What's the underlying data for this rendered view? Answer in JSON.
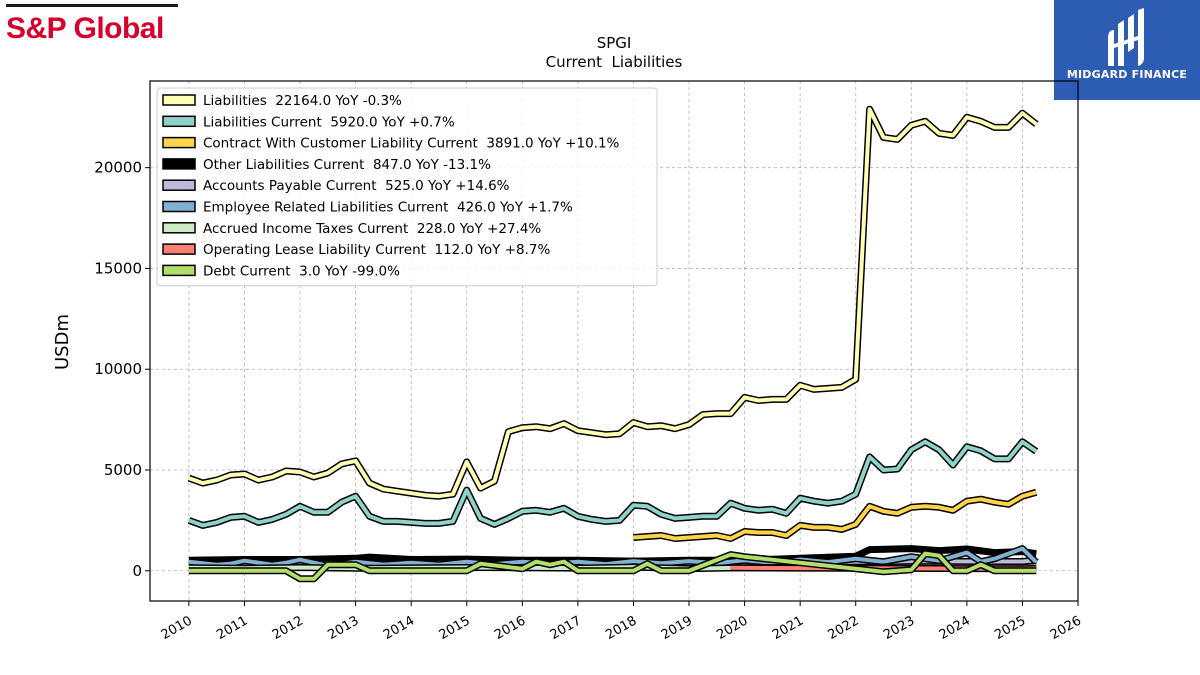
{
  "brand": {
    "left_logo_text": "S&P Global",
    "right_logo_text": "MIDGARD FINANCE",
    "right_logo_bg": "#2c5cb4",
    "left_logo_color": "#d6002a"
  },
  "chart_data": {
    "type": "line",
    "title": "SPGI",
    "subtitle": "Current  Liabilities",
    "ylabel": "USDm",
    "xlabel": "",
    "xlim": [
      2009.3,
      2026.0
    ],
    "ylim": [
      -1500,
      24300
    ],
    "yticks": [
      0,
      5000,
      10000,
      15000,
      20000
    ],
    "xticks": [
      2010,
      2011,
      2012,
      2013,
      2014,
      2015,
      2016,
      2017,
      2018,
      2019,
      2020,
      2021,
      2022,
      2023,
      2024,
      2025,
      2026
    ],
    "grid": true,
    "legend_position": "top-left",
    "series": [
      {
        "name": "Liabilities  22164.0 YoY -0.3%",
        "color": "#ffffb3",
        "x": [
          2010.0,
          2010.25,
          2010.5,
          2010.75,
          2011.0,
          2011.25,
          2011.5,
          2011.75,
          2012.0,
          2012.25,
          2012.5,
          2012.75,
          2013.0,
          2013.25,
          2013.5,
          2013.75,
          2014.0,
          2014.25,
          2014.5,
          2014.75,
          2015.0,
          2015.25,
          2015.5,
          2015.75,
          2016.0,
          2016.25,
          2016.5,
          2016.75,
          2017.0,
          2017.25,
          2017.5,
          2017.75,
          2018.0,
          2018.25,
          2018.5,
          2018.75,
          2019.0,
          2019.25,
          2019.5,
          2019.75,
          2020.0,
          2020.25,
          2020.5,
          2020.75,
          2021.0,
          2021.25,
          2021.5,
          2021.75,
          2022.0,
          2022.25,
          2022.5,
          2022.75,
          2023.0,
          2023.25,
          2023.5,
          2023.75,
          2024.0,
          2024.25,
          2024.5,
          2024.75,
          2025.0,
          2025.25
        ],
        "values": [
          4600,
          4350,
          4500,
          4750,
          4800,
          4500,
          4650,
          4950,
          4900,
          4650,
          4850,
          5300,
          5450,
          4350,
          4050,
          3950,
          3850,
          3750,
          3700,
          3800,
          5400,
          4100,
          4450,
          6900,
          7100,
          7150,
          7050,
          7300,
          6950,
          6850,
          6750,
          6800,
          7350,
          7150,
          7200,
          7050,
          7250,
          7750,
          7800,
          7800,
          8600,
          8450,
          8500,
          8500,
          9200,
          9000,
          9050,
          9100,
          9500,
          22900,
          21500,
          21400,
          22100,
          22300,
          21700,
          21600,
          22500,
          22300,
          22000,
          22000,
          22700,
          22164
        ]
      },
      {
        "name": "Liabilities Current  5920.0 YoY +0.7%",
        "color": "#8dd3c7",
        "x": [
          2010.0,
          2010.25,
          2010.5,
          2010.75,
          2011.0,
          2011.25,
          2011.5,
          2011.75,
          2012.0,
          2012.25,
          2012.5,
          2012.75,
          2013.0,
          2013.25,
          2013.5,
          2013.75,
          2014.0,
          2014.25,
          2014.5,
          2014.75,
          2015.0,
          2015.25,
          2015.5,
          2015.75,
          2016.0,
          2016.25,
          2016.5,
          2016.75,
          2017.0,
          2017.25,
          2017.5,
          2017.75,
          2018.0,
          2018.25,
          2018.5,
          2018.75,
          2019.0,
          2019.25,
          2019.5,
          2019.75,
          2020.0,
          2020.25,
          2020.5,
          2020.75,
          2021.0,
          2021.25,
          2021.5,
          2021.75,
          2022.0,
          2022.25,
          2022.5,
          2022.75,
          2023.0,
          2023.25,
          2023.5,
          2023.75,
          2024.0,
          2024.25,
          2024.5,
          2024.75,
          2025.0,
          2025.25
        ],
        "values": [
          2500,
          2250,
          2400,
          2650,
          2700,
          2400,
          2550,
          2800,
          3200,
          2900,
          2900,
          3400,
          3700,
          2700,
          2450,
          2450,
          2400,
          2350,
          2350,
          2450,
          4000,
          2600,
          2300,
          2600,
          2950,
          3000,
          2900,
          3100,
          2700,
          2550,
          2450,
          2500,
          3250,
          3200,
          2800,
          2600,
          2650,
          2700,
          2700,
          3350,
          3100,
          3000,
          3050,
          2850,
          3600,
          3450,
          3350,
          3450,
          3800,
          5650,
          5000,
          5050,
          6000,
          6400,
          6000,
          5250,
          6150,
          5950,
          5550,
          5550,
          6400,
          5920
        ]
      },
      {
        "name": "Contract With Customer Liability Current  3891.0 YoY +10.1%",
        "color": "#fdd44a",
        "x": [
          2018.0,
          2018.25,
          2018.5,
          2018.75,
          2019.0,
          2019.25,
          2019.5,
          2019.75,
          2020.0,
          2020.25,
          2020.5,
          2020.75,
          2021.0,
          2021.25,
          2021.5,
          2021.75,
          2022.0,
          2022.25,
          2022.5,
          2022.75,
          2023.0,
          2023.25,
          2023.5,
          2023.75,
          2024.0,
          2024.25,
          2024.5,
          2024.75,
          2025.0,
          2025.25
        ],
        "values": [
          1650,
          1700,
          1750,
          1600,
          1650,
          1700,
          1750,
          1600,
          1950,
          1900,
          1900,
          1750,
          2250,
          2150,
          2150,
          2050,
          2300,
          3200,
          2950,
          2850,
          3150,
          3200,
          3150,
          3000,
          3450,
          3550,
          3400,
          3300,
          3700,
          3891
        ]
      },
      {
        "name": "Other Liabilities Current  847.0 YoY -13.1%",
        "color": "#000000",
        "x": [
          2010.0,
          2011.0,
          2012.0,
          2013.0,
          2013.25,
          2014.0,
          2015.0,
          2016.0,
          2017.0,
          2018.0,
          2019.0,
          2020.0,
          2021.0,
          2022.0,
          2022.25,
          2023.0,
          2023.5,
          2024.0,
          2024.5,
          2025.0,
          2025.25
        ],
        "values": [
          520,
          560,
          560,
          620,
          680,
          560,
          580,
          520,
          520,
          480,
          520,
          520,
          620,
          720,
          1050,
          1100,
          1000,
          1080,
          900,
          950,
          847
        ]
      },
      {
        "name": "Accounts Payable Current  525.0 YoY +14.6%",
        "color": "#bebada",
        "x": [
          2010.0,
          2011.0,
          2012.0,
          2013.0,
          2014.0,
          2015.0,
          2016.0,
          2017.0,
          2018.0,
          2019.0,
          2020.0,
          2021.0,
          2022.0,
          2023.0,
          2024.0,
          2025.0,
          2025.25
        ],
        "values": [
          330,
          360,
          340,
          390,
          380,
          400,
          350,
          380,
          420,
          380,
          360,
          420,
          430,
          470,
          460,
          458,
          525
        ]
      },
      {
        "name": "Employee Related Liabilities Current  426.0 YoY +1.7%",
        "color": "#80b1d3",
        "x": [
          2010.0,
          2010.5,
          2010.75,
          2011.0,
          2011.5,
          2011.75,
          2012.0,
          2012.5,
          2013.0,
          2013.5,
          2014.0,
          2014.5,
          2015.0,
          2015.5,
          2016.0,
          2016.5,
          2017.0,
          2017.5,
          2018.0,
          2018.5,
          2019.0,
          2019.5,
          2020.0,
          2020.5,
          2021.0,
          2021.5,
          2022.0,
          2022.5,
          2023.0,
          2023.5,
          2024.0,
          2024.25,
          2024.5,
          2025.0,
          2025.25
        ],
        "values": [
          450,
          300,
          350,
          500,
          300,
          400,
          550,
          250,
          450,
          300,
          400,
          300,
          450,
          320,
          450,
          350,
          450,
          330,
          480,
          370,
          480,
          380,
          520,
          400,
          560,
          430,
          600,
          450,
          700,
          500,
          900,
          450,
          600,
          1100,
          426
        ]
      },
      {
        "name": "Accrued Income Taxes Current  228.0 YoY +27.4%",
        "color": "#ccebc5",
        "x": [
          2010.0,
          2011.0,
          2012.0,
          2013.0,
          2014.0,
          2015.0,
          2016.0,
          2017.0,
          2018.0,
          2019.0,
          2020.0,
          2021.0,
          2022.0,
          2023.0,
          2024.0,
          2025.0,
          2025.25
        ],
        "values": [
          150,
          120,
          160,
          120,
          140,
          160,
          150,
          130,
          180,
          110,
          150,
          160,
          170,
          200,
          190,
          179,
          228
        ]
      },
      {
        "name": "Operating Lease Liability Current  112.0 YoY +8.7%",
        "color": "#fb8072",
        "x": [
          2019.75,
          2020.0,
          2021.0,
          2022.0,
          2023.0,
          2024.0,
          2025.0,
          2025.25
        ],
        "values": [
          150,
          140,
          130,
          120,
          115,
          110,
          103,
          112
        ]
      },
      {
        "name": "Debt Current  3.0 YoY -99.0%",
        "color": "#b3de69",
        "x": [
          2010.0,
          2011.0,
          2011.75,
          2012.0,
          2012.25,
          2012.5,
          2012.75,
          2013.0,
          2013.25,
          2014.0,
          2015.0,
          2015.25,
          2016.0,
          2016.25,
          2016.5,
          2016.75,
          2017.0,
          2018.0,
          2018.25,
          2018.5,
          2019.0,
          2019.75,
          2020.0,
          2021.0,
          2022.0,
          2022.5,
          2023.0,
          2023.25,
          2023.5,
          2023.75,
          2024.0,
          2024.25,
          2024.5,
          2025.0,
          2025.25
        ],
        "values": [
          0,
          0,
          0,
          -400,
          -400,
          300,
          300,
          300,
          0,
          0,
          0,
          350,
          100,
          450,
          300,
          450,
          0,
          0,
          350,
          0,
          0,
          800,
          700,
          400,
          100,
          -50,
          50,
          850,
          750,
          0,
          0,
          300,
          0,
          0,
          3
        ]
      }
    ]
  }
}
